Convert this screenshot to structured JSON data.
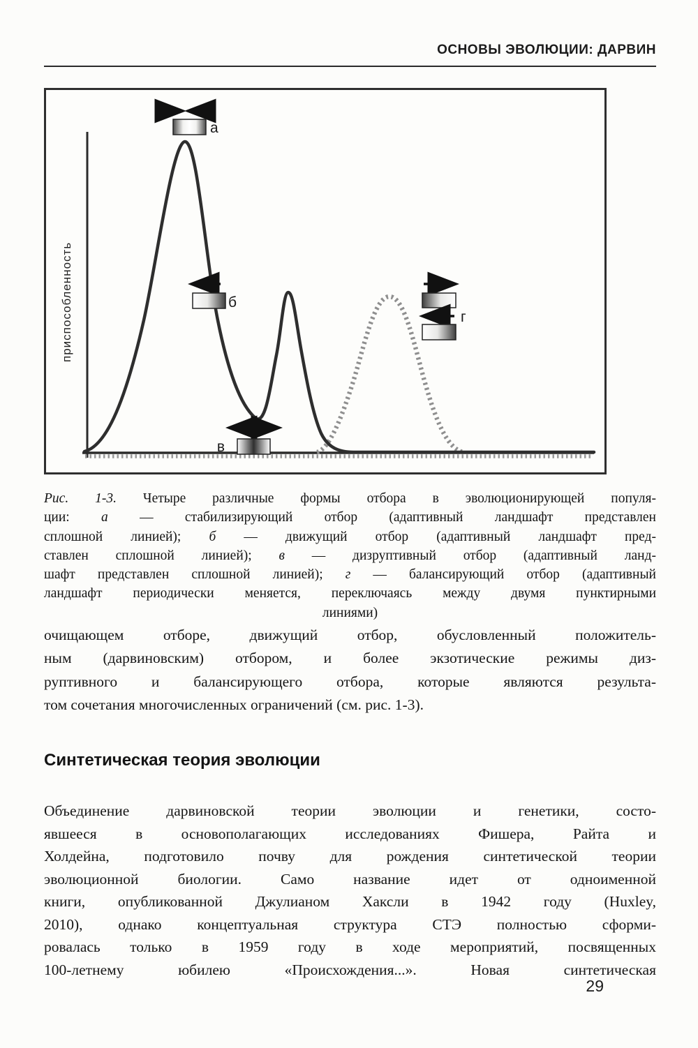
{
  "page": {
    "header": "ОСНОВЫ ЭВОЛЮЦИИ: ДАРВИН",
    "page_number": "29"
  },
  "figure": {
    "y_axis_label": "приспособленность",
    "labels": {
      "a": "а",
      "b": "б",
      "v": "в",
      "g": "г"
    },
    "curve_colors": {
      "solid": "#2e2e2e",
      "dashed": "#8f8f8f"
    },
    "caption_lines": [
      [
        {
          "t": "Рис. 1-3.",
          "i": true
        },
        {
          "t": " Четыре различные формы отбора в эволюционирующей популя-"
        }
      ],
      [
        {
          "t": "ции: "
        },
        {
          "t": "а",
          "i": true
        },
        {
          "t": " — стабилизирующий отбор (адаптивный ландшафт представлен"
        }
      ],
      [
        {
          "t": "сплошной линией); "
        },
        {
          "t": "б",
          "i": true
        },
        {
          "t": " — движущий отбор (адаптивный ландшафт пред-"
        }
      ],
      [
        {
          "t": "ставлен сплошной линией); "
        },
        {
          "t": "в",
          "i": true
        },
        {
          "t": " — дизруптивный отбор (адаптивный ланд-"
        }
      ],
      [
        {
          "t": "шафт представлен сплошной линией); "
        },
        {
          "t": "г",
          "i": true
        },
        {
          "t": " — балансирующий отбор (адаптивный"
        }
      ],
      [
        {
          "t": "ландшафт периодически меняется, переключаясь между двумя пунктирными"
        }
      ],
      [
        {
          "t": "линиями)"
        }
      ]
    ]
  },
  "body": {
    "para1_lines": [
      "очищающем отборе, движущий отбор, обусловленный положитель-",
      "ным (дарвиновским) отбором, и более экзотические режимы диз-",
      "руптивного и балансирующего отбора, которые являются результа-",
      "том сочетания многочисленных ограничений (см. рис. 1-3)."
    ],
    "heading": "Синтетическая теория эволюции",
    "para2_lines": [
      "Объединение дарвиновской теории эволюции и генетики, состо-",
      "явшееся в основополагающих исследованиях Фишера, Райта и",
      "Холдейна, подготовило почву для рождения синтетической теории",
      "эволюционной биологии. Само название идет от одноименной",
      "книги, опубликованной Джулианом Хаксли в 1942 году (Huxley,",
      "2010), однако концептуальная структура СТЭ полностью сформи-",
      "ровалась только в 1959 году в ходе мероприятий, посвященных",
      "100-летнему юбилею «Происхождения...». Новая синтетическая"
    ]
  }
}
